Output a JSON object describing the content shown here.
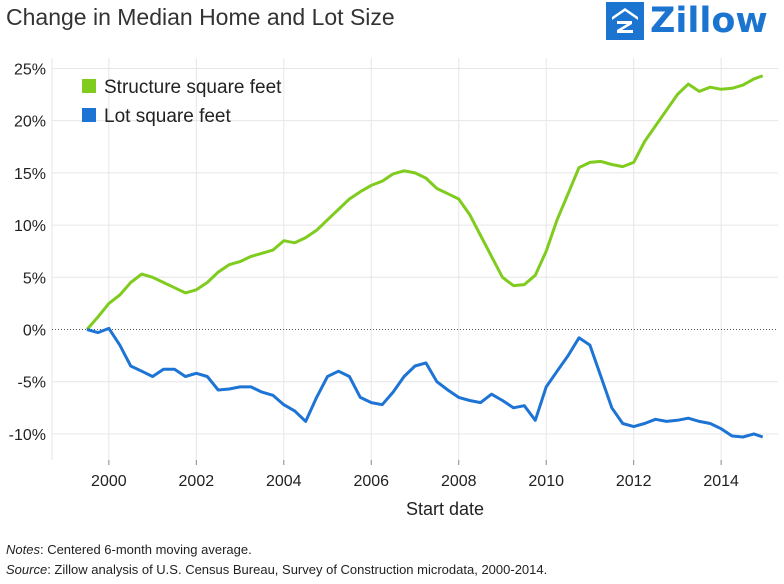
{
  "header": {
    "title": "Change in Median Home and Lot Size",
    "logo_text": "Zillow",
    "logo_icon": "zillow-z-icon",
    "brand_color": "#1b75d0"
  },
  "notes": {
    "notes_label": "Notes",
    "notes_text": ": Centered 6-month moving average.",
    "source_label": "Source",
    "source_text": ": Zillow analysis of U.S. Census Bureau, Survey of Construction microdata, 2000-2014."
  },
  "chart_data": {
    "type": "line",
    "title": "Change in Median Home and Lot Size",
    "xlabel": "Start date",
    "ylabel": "",
    "x_ticks": [
      2000,
      2002,
      2004,
      2006,
      2008,
      2010,
      2012,
      2014
    ],
    "y_ticks": [
      -10,
      -5,
      0,
      5,
      10,
      15,
      20,
      25
    ],
    "y_tick_labels": [
      "-10%",
      "-5%",
      "0%",
      "5%",
      "10%",
      "15%",
      "20%",
      "25%"
    ],
    "xlim": [
      1998.7,
      2015.3
    ],
    "ylim": [
      -12.5,
      26
    ],
    "grid": true,
    "zero_line": "dotted",
    "legend": "top-left",
    "series": [
      {
        "name": "Structure square feet",
        "color": "#7fcc1e",
        "x": [
          1999.5,
          1999.75,
          2000.0,
          2000.25,
          2000.5,
          2000.75,
          2001.0,
          2001.25,
          2001.5,
          2001.75,
          2002.0,
          2002.25,
          2002.5,
          2002.75,
          2003.0,
          2003.25,
          2003.5,
          2003.75,
          2004.0,
          2004.25,
          2004.5,
          2004.75,
          2005.0,
          2005.25,
          2005.5,
          2005.75,
          2006.0,
          2006.25,
          2006.5,
          2006.75,
          2007.0,
          2007.25,
          2007.5,
          2007.75,
          2008.0,
          2008.25,
          2008.5,
          2008.75,
          2009.0,
          2009.25,
          2009.5,
          2009.75,
          2010.0,
          2010.25,
          2010.5,
          2010.75,
          2011.0,
          2011.25,
          2011.5,
          2011.75,
          2012.0,
          2012.25,
          2012.5,
          2012.75,
          2013.0,
          2013.25,
          2013.5,
          2013.75,
          2014.0,
          2014.25,
          2014.5,
          2014.75,
          2014.95
        ],
        "values": [
          0.0,
          1.2,
          2.5,
          3.3,
          4.5,
          5.3,
          5.0,
          4.5,
          4.0,
          3.5,
          3.8,
          4.5,
          5.5,
          6.2,
          6.5,
          7.0,
          7.3,
          7.6,
          8.5,
          8.3,
          8.8,
          9.5,
          10.5,
          11.5,
          12.5,
          13.2,
          13.8,
          14.2,
          14.9,
          15.2,
          15.0,
          14.5,
          13.5,
          13.0,
          12.5,
          11.0,
          9.0,
          7.0,
          5.0,
          4.2,
          4.3,
          5.2,
          7.5,
          10.5,
          13.0,
          15.5,
          16.0,
          16.1,
          15.8,
          15.6,
          16.0,
          18.0,
          19.5,
          21.0,
          22.5,
          23.5,
          22.8,
          23.2,
          23.0,
          23.1,
          23.4,
          24.0,
          24.3
        ]
      },
      {
        "name": "Lot square feet",
        "color": "#1d74d4",
        "x": [
          1999.5,
          1999.75,
          2000.0,
          2000.25,
          2000.5,
          2000.75,
          2001.0,
          2001.25,
          2001.5,
          2001.75,
          2002.0,
          2002.25,
          2002.5,
          2002.75,
          2003.0,
          2003.25,
          2003.5,
          2003.75,
          2004.0,
          2004.25,
          2004.5,
          2004.75,
          2005.0,
          2005.25,
          2005.5,
          2005.75,
          2006.0,
          2006.25,
          2006.5,
          2006.75,
          2007.0,
          2007.25,
          2007.5,
          2007.75,
          2008.0,
          2008.25,
          2008.5,
          2008.75,
          2009.0,
          2009.25,
          2009.5,
          2009.75,
          2010.0,
          2010.25,
          2010.5,
          2010.75,
          2011.0,
          2011.25,
          2011.5,
          2011.75,
          2012.0,
          2012.25,
          2012.5,
          2012.75,
          2013.0,
          2013.25,
          2013.5,
          2013.75,
          2014.0,
          2014.25,
          2014.5,
          2014.75,
          2014.95
        ],
        "values": [
          0.0,
          -0.3,
          0.1,
          -1.5,
          -3.5,
          -4.0,
          -4.5,
          -3.8,
          -3.8,
          -4.5,
          -4.2,
          -4.5,
          -5.8,
          -5.7,
          -5.5,
          -5.5,
          -6.0,
          -6.3,
          -7.2,
          -7.8,
          -8.8,
          -6.5,
          -4.5,
          -4.0,
          -4.5,
          -6.5,
          -7.0,
          -7.2,
          -6.0,
          -4.5,
          -3.5,
          -3.2,
          -5.0,
          -5.8,
          -6.5,
          -6.8,
          -7.0,
          -6.2,
          -6.8,
          -7.5,
          -7.3,
          -8.7,
          -5.5,
          -4.0,
          -2.5,
          -0.8,
          -1.5,
          -4.5,
          -7.5,
          -9.0,
          -9.3,
          -9.0,
          -8.6,
          -8.8,
          -8.7,
          -8.5,
          -8.8,
          -9.0,
          -9.5,
          -10.2,
          -10.3,
          -10.0,
          -10.3
        ]
      }
    ]
  }
}
